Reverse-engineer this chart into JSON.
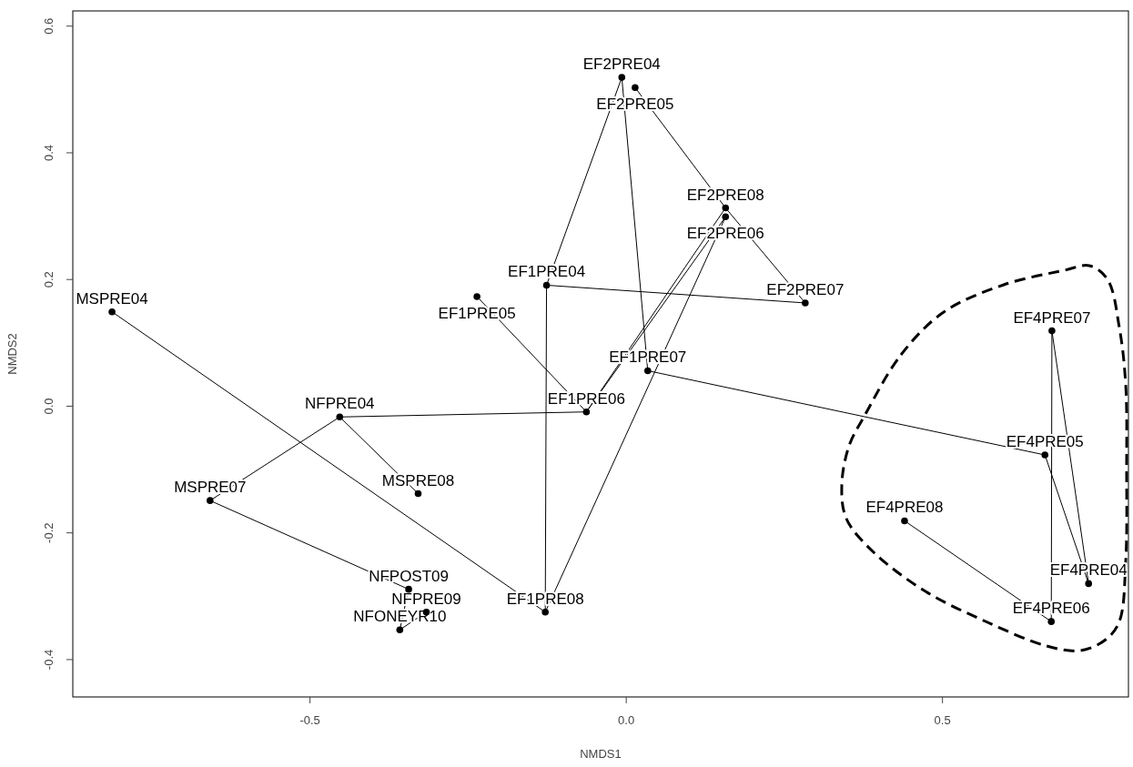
{
  "chart_data": {
    "type": "scatter",
    "xlabel": "NMDS1",
    "ylabel": "NMDS2",
    "xlim": [
      -0.875,
      0.794
    ],
    "ylim": [
      -0.459,
      0.624
    ],
    "xticks": [
      -0.5,
      {
        "value": 0,
        "label": "0.0"
      },
      0.5
    ],
    "yticks": [
      -0.4,
      -0.2,
      {
        "value": 0,
        "label": "0.0"
      },
      0.2,
      0.4,
      0.6
    ],
    "grid": false,
    "marker": "circle",
    "series": [
      {
        "color": "#000000",
        "x": [
          -0.813,
          -0.453,
          -0.658,
          -0.329,
          -0.344,
          -0.316,
          -0.358,
          -0.128,
          -0.063,
          0.034,
          -0.126,
          -0.236,
          -0.007,
          0.014,
          0.157,
          0.157,
          0.283,
          0.673,
          0.662,
          0.44,
          0.731,
          0.672
        ],
        "values": [
          0.149,
          -0.017,
          -0.149,
          -0.138,
          -0.289,
          -0.325,
          -0.353,
          -0.325,
          -0.009,
          0.056,
          0.191,
          0.173,
          0.519,
          0.503,
          0.313,
          0.299,
          0.163,
          0.119,
          -0.077,
          -0.181,
          -0.28,
          -0.34
        ]
      },
      {
        "type": "line",
        "color": "#000000",
        "marker": "none",
        "x": [
          -0.813,
          -0.128,
          -0.126,
          -0.007,
          0.034,
          0.662,
          0.731,
          0.673,
          0.672,
          0.44
        ],
        "values": [
          0.149,
          -0.325,
          0.191,
          0.519,
          0.056,
          -0.077,
          -0.28,
          0.119,
          -0.34,
          -0.181
        ]
      },
      {
        "type": "line",
        "color": "#000000",
        "marker": "none",
        "x": [
          -0.126,
          0.283,
          0.157,
          0.014
        ],
        "values": [
          0.191,
          0.163,
          0.313,
          0.503
        ]
      },
      {
        "type": "line",
        "color": "#000000",
        "marker": "none",
        "x": [
          -0.128,
          0.157,
          -0.063,
          0.157
        ],
        "values": [
          -0.325,
          0.299,
          -0.009,
          0.313
        ]
      },
      {
        "type": "line",
        "color": "#000000",
        "marker": "none",
        "x": [
          -0.236,
          -0.063,
          -0.453,
          -0.329
        ],
        "values": [
          0.173,
          -0.009,
          -0.017,
          -0.138
        ]
      },
      {
        "type": "line",
        "color": "#000000",
        "marker": "none",
        "x": [
          -0.453,
          -0.658,
          -0.344,
          -0.358,
          -0.316
        ],
        "values": [
          -0.017,
          -0.149,
          -0.289,
          -0.353,
          -0.325
        ]
      }
    ],
    "annotations": [
      {
        "text": "MSPRE04",
        "x": -0.813,
        "y": 0.149
      },
      {
        "text": "NFPRE04",
        "x": -0.453,
        "y": -0.017
      },
      {
        "text": "MSPRE07",
        "x": -0.658,
        "y": -0.149
      },
      {
        "text": "MSPRE08",
        "x": -0.329,
        "y": -0.138
      },
      {
        "text": "NFPOST09",
        "x": -0.344,
        "y": -0.289
      },
      {
        "text": "NFPRE09",
        "x": -0.316,
        "y": -0.325
      },
      {
        "text": "NFONEYR10",
        "x": -0.358,
        "y": -0.353
      },
      {
        "text": "EF1PRE08",
        "x": -0.128,
        "y": -0.325
      },
      {
        "text": "EF1PRE06",
        "x": -0.063,
        "y": -0.009
      },
      {
        "text": "EF1PRE07",
        "x": 0.034,
        "y": 0.056
      },
      {
        "text": "EF1PRE04",
        "x": -0.126,
        "y": 0.191
      },
      {
        "text": "EF1PRE05",
        "x": -0.236,
        "y": 0.173
      },
      {
        "text": "EF2PRE04",
        "x": -0.007,
        "y": 0.519
      },
      {
        "text": "EF2PRE05",
        "x": 0.014,
        "y": 0.503
      },
      {
        "text": "EF2PRE08",
        "x": 0.157,
        "y": 0.313
      },
      {
        "text": "EF2PRE06",
        "x": 0.157,
        "y": 0.299
      },
      {
        "text": "EF2PRE07",
        "x": 0.283,
        "y": 0.163
      },
      {
        "text": "EF4PRE07",
        "x": 0.673,
        "y": 0.119
      },
      {
        "text": "EF4PRE05",
        "x": 0.662,
        "y": -0.077
      },
      {
        "text": "EF4PRE08",
        "x": 0.44,
        "y": -0.181
      },
      {
        "text": "EF4PRE04",
        "x": 0.731,
        "y": -0.28
      },
      {
        "text": "EF4PRE06",
        "x": 0.672,
        "y": -0.34
      }
    ]
  }
}
